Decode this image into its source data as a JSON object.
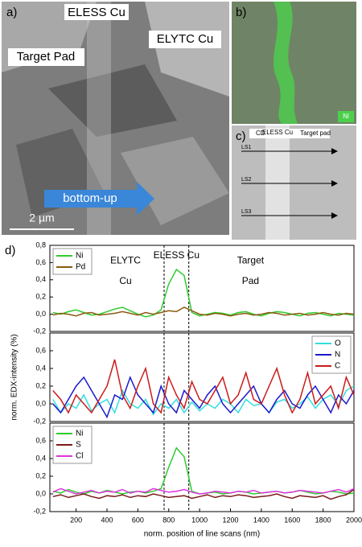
{
  "images": {
    "a": {
      "label": "a)",
      "texts": [
        "ELESS Cu",
        "ELYTC Cu",
        "Target Pad"
      ],
      "arrow": "bottom-up",
      "scale": "2 µm"
    },
    "b": {
      "label": "b)",
      "element": "Ni"
    },
    "c": {
      "label": "c)",
      "header": [
        "CD",
        "ELESS Cu",
        "Target pad"
      ],
      "scans": [
        "LS1",
        "LS2",
        "LS3"
      ]
    }
  },
  "panel_label": "d)",
  "chart_data": [
    {
      "type": "line",
      "xlim": [
        30,
        2000
      ],
      "ylim": [
        -0.2,
        0.8
      ],
      "yticks": [
        {
          "value": -0.2,
          "label": "-0,2"
        },
        {
          "value": 0,
          "label": "0,0"
        },
        {
          "value": 0.2,
          "label": "0,2"
        },
        {
          "value": 0.4,
          "label": "0,4"
        },
        {
          "value": 0.6,
          "label": "0,6"
        },
        {
          "value": 0.8,
          "label": "0,8"
        }
      ],
      "vlines": [
        770,
        930
      ],
      "legend": "upper left",
      "annotations": [
        {
          "text": "ELYTC",
          "x": 520,
          "y": 0.62
        },
        {
          "text": "Cu",
          "x": 520,
          "y": 0.38
        },
        {
          "text": "ELESS  Cu",
          "x": 850,
          "y": 0.68
        },
        {
          "text": "Target",
          "x": 1330,
          "y": 0.62
        },
        {
          "text": "Pad",
          "x": 1330,
          "y": 0.38
        }
      ],
      "x": [
        50,
        100,
        150,
        200,
        250,
        300,
        350,
        400,
        450,
        500,
        550,
        600,
        650,
        700,
        750,
        800,
        850,
        900,
        950,
        1000,
        1050,
        1100,
        1150,
        1200,
        1250,
        1300,
        1350,
        1400,
        1450,
        1500,
        1550,
        1600,
        1650,
        1700,
        1750,
        1800,
        1850,
        1900,
        1950,
        2000
      ],
      "series": [
        {
          "name": "Ni",
          "color": "#2ecc2e",
          "values": [
            0.02,
            0.0,
            0.03,
            0.05,
            0.02,
            -0.01,
            0.0,
            0.03,
            0.06,
            0.08,
            0.04,
            0.0,
            -0.03,
            -0.01,
            0.05,
            0.35,
            0.52,
            0.45,
            0.02,
            -0.02,
            0.0,
            0.02,
            0.01,
            -0.01,
            0.02,
            0.03,
            0.0,
            -0.02,
            0.01,
            0.03,
            0.02,
            0.0,
            -0.02,
            0.01,
            0.02,
            0.0,
            -0.02,
            0.01,
            0.0,
            -0.01
          ]
        },
        {
          "name": "Pd",
          "color": "#8b5a10",
          "values": [
            -0.01,
            0.01,
            0.0,
            -0.02,
            0.01,
            0.02,
            -0.01,
            0.0,
            0.01,
            0.03,
            0.01,
            -0.01,
            0.02,
            0.0,
            0.02,
            0.04,
            0.03,
            0.08,
            0.04,
            0.0,
            -0.01,
            0.01,
            0.0,
            -0.02,
            0.0,
            0.01,
            -0.01,
            0.0,
            0.02,
            0.01,
            -0.01,
            0.0,
            0.01,
            -0.01,
            0.0,
            0.02,
            0.0,
            -0.01,
            0.01,
            0.0
          ]
        }
      ]
    },
    {
      "type": "line",
      "xlim": [
        30,
        2000
      ],
      "ylim": [
        -0.2,
        0.8
      ],
      "yticks": [
        {
          "value": -0.2,
          "label": "-0,2"
        },
        {
          "value": 0,
          "label": "0,0"
        },
        {
          "value": 0.2,
          "label": "0,2"
        },
        {
          "value": 0.4,
          "label": "0,4"
        },
        {
          "value": 0.6,
          "label": "0,6"
        },
        {
          "value": 0.8,
          "label": "0,8"
        }
      ],
      "vlines": [
        770,
        930
      ],
      "legend": "upper right",
      "ylabel": "norm. EDX-intensity (%)",
      "x": [
        50,
        100,
        150,
        200,
        250,
        300,
        350,
        400,
        450,
        500,
        550,
        600,
        650,
        700,
        750,
        800,
        850,
        900,
        950,
        1000,
        1050,
        1100,
        1150,
        1200,
        1250,
        1300,
        1350,
        1400,
        1450,
        1500,
        1550,
        1600,
        1650,
        1700,
        1750,
        1800,
        1850,
        1900,
        1950,
        2000
      ],
      "series": [
        {
          "name": "O",
          "color": "#33dede",
          "values": [
            0.05,
            -0.1,
            0.0,
            -0.05,
            0.1,
            -0.08,
            0.0,
            0.05,
            -0.1,
            0.15,
            0.0,
            -0.05,
            0.05,
            -0.12,
            0.0,
            -0.05,
            0.05,
            -0.1,
            0.02,
            -0.08,
            0.0,
            -0.05,
            0.05,
            0.0,
            -0.1,
            0.05,
            -0.02,
            0.0,
            -0.1,
            0.02,
            0.05,
            -0.05,
            0.0,
            0.08,
            -0.05,
            0.05,
            0.1,
            -0.02,
            0.15,
            0.2
          ]
        },
        {
          "name": "N",
          "color": "#1a1acc",
          "values": [
            0.0,
            -0.1,
            0.05,
            0.2,
            0.3,
            0.15,
            0.0,
            -0.15,
            0.1,
            0.05,
            0.3,
            0.1,
            0.0,
            -0.1,
            0.2,
            0.0,
            -0.1,
            0.15,
            0.05,
            -0.05,
            0.1,
            0.2,
            0.0,
            -0.1,
            0.0,
            0.1,
            0.2,
            0.0,
            -0.1,
            0.05,
            0.15,
            0.0,
            -0.05,
            0.1,
            0.2,
            0.05,
            -0.1,
            0.1,
            0.0,
            0.15
          ]
        },
        {
          "name": "C",
          "color": "#cc1a1a",
          "values": [
            0.15,
            0.05,
            -0.1,
            0.1,
            0.0,
            -0.1,
            0.05,
            0.2,
            0.5,
            0.1,
            -0.05,
            0.2,
            0.4,
            0.0,
            -0.1,
            0.3,
            0.1,
            -0.05,
            0.25,
            0.05,
            0.0,
            0.15,
            0.3,
            0.0,
            0.1,
            0.35,
            0.05,
            0.0,
            0.2,
            0.4,
            0.1,
            -0.1,
            0.05,
            0.35,
            0.0,
            0.1,
            0.2,
            -0.05,
            0.3,
            0.1
          ]
        }
      ]
    },
    {
      "type": "line",
      "xlim": [
        30,
        2000
      ],
      "ylim": [
        -0.2,
        0.8
      ],
      "yticks": [
        {
          "value": -0.2,
          "label": "-0,2"
        },
        {
          "value": 0,
          "label": "0,0"
        },
        {
          "value": 0.2,
          "label": "0,2"
        },
        {
          "value": 0.4,
          "label": "0,4"
        },
        {
          "value": 0.6,
          "label": "0,6"
        },
        {
          "value": 0.8,
          "label": "0,8"
        }
      ],
      "xticks": [
        200,
        400,
        600,
        800,
        1000,
        1200,
        1400,
        1600,
        1800,
        2000
      ],
      "xlabel": "norm. position of line scans (nm)",
      "vlines": [
        770,
        930
      ],
      "legend": "upper left",
      "x": [
        50,
        100,
        150,
        200,
        250,
        300,
        350,
        400,
        450,
        500,
        550,
        600,
        650,
        700,
        750,
        800,
        850,
        900,
        950,
        1000,
        1050,
        1100,
        1150,
        1200,
        1250,
        1300,
        1350,
        1400,
        1450,
        1500,
        1550,
        1600,
        1650,
        1700,
        1750,
        1800,
        1850,
        1900,
        1950,
        2000
      ],
      "series": [
        {
          "name": "Ni",
          "color": "#2ecc2e",
          "values": [
            0.03,
            0.01,
            0.05,
            0.02,
            0.0,
            0.03,
            0.01,
            0.04,
            0.02,
            0.0,
            0.02,
            0.03,
            0.01,
            0.03,
            0.06,
            0.3,
            0.52,
            0.42,
            0.03,
            0.0,
            0.01,
            0.02,
            0.0,
            0.01,
            0.03,
            0.02,
            0.0,
            0.01,
            0.02,
            0.03,
            0.01,
            0.02,
            0.04,
            0.02,
            0.0,
            0.01,
            0.03,
            0.02,
            0.0,
            0.01
          ]
        },
        {
          "name": "S",
          "color": "#7a1a1a",
          "values": [
            -0.03,
            -0.01,
            -0.04,
            -0.02,
            0.0,
            -0.03,
            -0.05,
            -0.02,
            -0.03,
            -0.01,
            -0.04,
            -0.02,
            -0.03,
            0.0,
            -0.02,
            -0.04,
            -0.03,
            -0.02,
            -0.05,
            -0.03,
            -0.01,
            -0.04,
            -0.02,
            -0.03,
            -0.01,
            -0.02,
            -0.04,
            -0.03,
            -0.02,
            0.0,
            -0.03,
            -0.05,
            -0.02,
            -0.03,
            -0.04,
            -0.02,
            -0.06,
            -0.03,
            -0.01,
            0.05
          ]
        },
        {
          "name": "Cl",
          "color": "#dd33dd",
          "values": [
            0.02,
            0.06,
            0.03,
            0.0,
            0.02,
            0.04,
            0.01,
            0.03,
            0.02,
            0.05,
            0.01,
            0.03,
            0.02,
            0.06,
            0.04,
            0.02,
            0.03,
            0.05,
            0.02,
            0.0,
            0.01,
            0.03,
            0.02,
            0.01,
            0.03,
            0.02,
            0.04,
            0.01,
            0.02,
            0.03,
            0.01,
            0.02,
            0.04,
            0.03,
            0.02,
            0.01,
            0.03,
            0.05,
            0.02,
            0.06
          ]
        }
      ]
    }
  ]
}
